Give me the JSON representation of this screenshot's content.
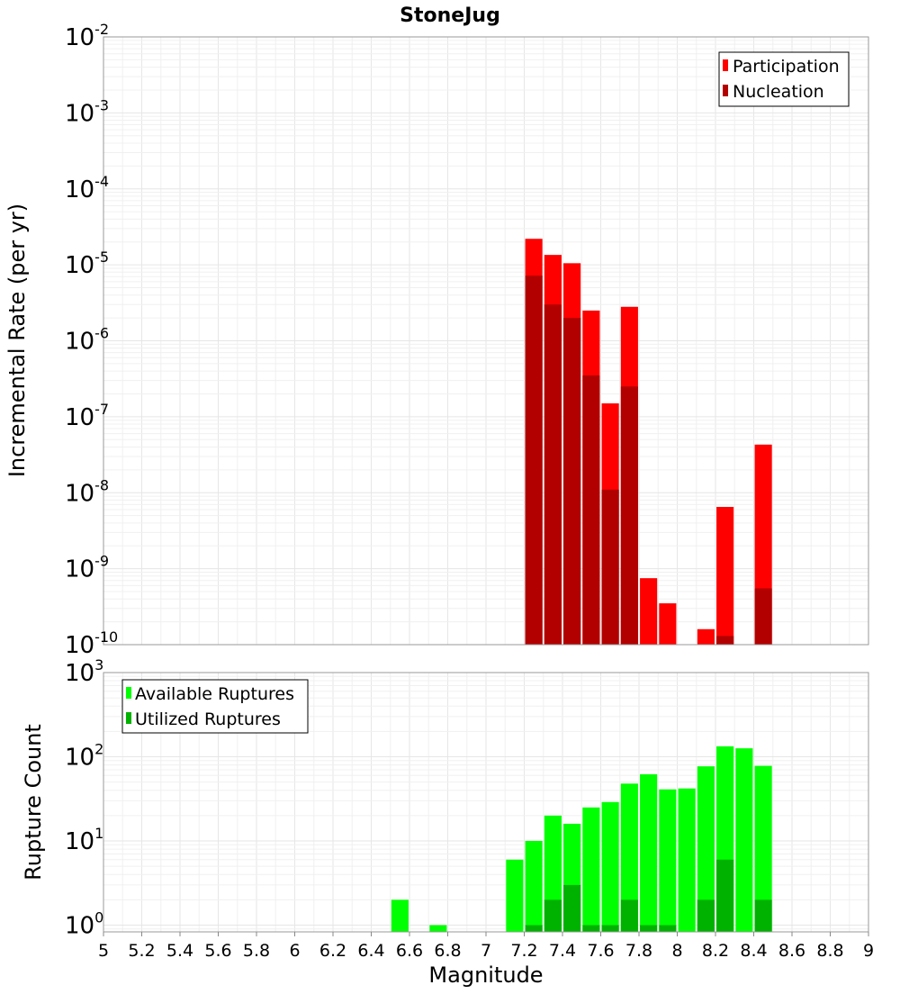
{
  "chart_data": [
    {
      "type": "bar",
      "title": "StoneJug",
      "ylabel": "Incremental Rate (per yr)",
      "xlabel": "",
      "yscale": "log",
      "ylim_exp": [
        -10,
        -2
      ],
      "ytick_base": "10",
      "ytick_exponents": [
        "-2",
        "-3",
        "-4",
        "-5",
        "-6",
        "-7",
        "-8",
        "-9",
        "-10"
      ],
      "xlim": [
        5,
        9
      ],
      "bar_width": 0.09,
      "legend_position": "top-right",
      "series": [
        {
          "name": "Participation",
          "color": "#ff0000",
          "x": [
            7.25,
            7.35,
            7.45,
            7.55,
            7.65,
            7.75,
            7.85,
            7.95,
            8.15,
            8.25,
            8.45
          ],
          "values": [
            2.2e-05,
            1.35e-05,
            1.05e-05,
            2.5e-06,
            1.5e-07,
            2.8e-06,
            7.5e-10,
            3.5e-10,
            1.6e-10,
            6.5e-09,
            4.3e-08
          ]
        },
        {
          "name": "Nucleation",
          "color": "#b20000",
          "x": [
            7.25,
            7.35,
            7.45,
            7.55,
            7.65,
            7.75,
            8.25,
            8.45
          ],
          "values": [
            7.2e-06,
            3e-06,
            2e-06,
            3.5e-07,
            1.1e-08,
            2.5e-07,
            1.3e-10,
            5.5e-10
          ]
        }
      ]
    },
    {
      "type": "bar",
      "title": "",
      "ylabel": "Rupture Count",
      "xlabel": "Magnitude",
      "yscale": "log",
      "ylim_exp": [
        -0.08,
        3
      ],
      "ytick_base": "10",
      "ytick_exponents": [
        "3",
        "2",
        "1",
        "0"
      ],
      "xlim": [
        5,
        9
      ],
      "xtick_labels": [
        "5",
        "5.2",
        "5.4",
        "5.6",
        "5.8",
        "6",
        "6.2",
        "6.4",
        "6.6",
        "6.8",
        "7",
        "7.2",
        "7.4",
        "7.6",
        "7.8",
        "8",
        "8.2",
        "8.4",
        "8.6",
        "8.8",
        "9"
      ],
      "bar_width": 0.09,
      "legend_position": "top-left",
      "series": [
        {
          "name": "Available Ruptures",
          "color": "#00ff00",
          "x": [
            6.55,
            6.75,
            7.15,
            7.25,
            7.35,
            7.45,
            7.55,
            7.65,
            7.75,
            7.85,
            7.95,
            8.05,
            8.15,
            8.25,
            8.35,
            8.45
          ],
          "values": [
            2,
            1,
            6,
            10,
            20,
            16,
            25,
            29,
            48,
            62,
            41,
            42,
            77,
            133,
            126,
            78
          ]
        },
        {
          "name": "Utilized Ruptures",
          "color": "#00b200",
          "x": [
            7.25,
            7.35,
            7.45,
            7.55,
            7.65,
            7.75,
            7.85,
            7.95,
            8.15,
            8.25,
            8.45
          ],
          "values": [
            1,
            2,
            3,
            1,
            1,
            2,
            1,
            1,
            2,
            6,
            2
          ]
        }
      ]
    }
  ]
}
